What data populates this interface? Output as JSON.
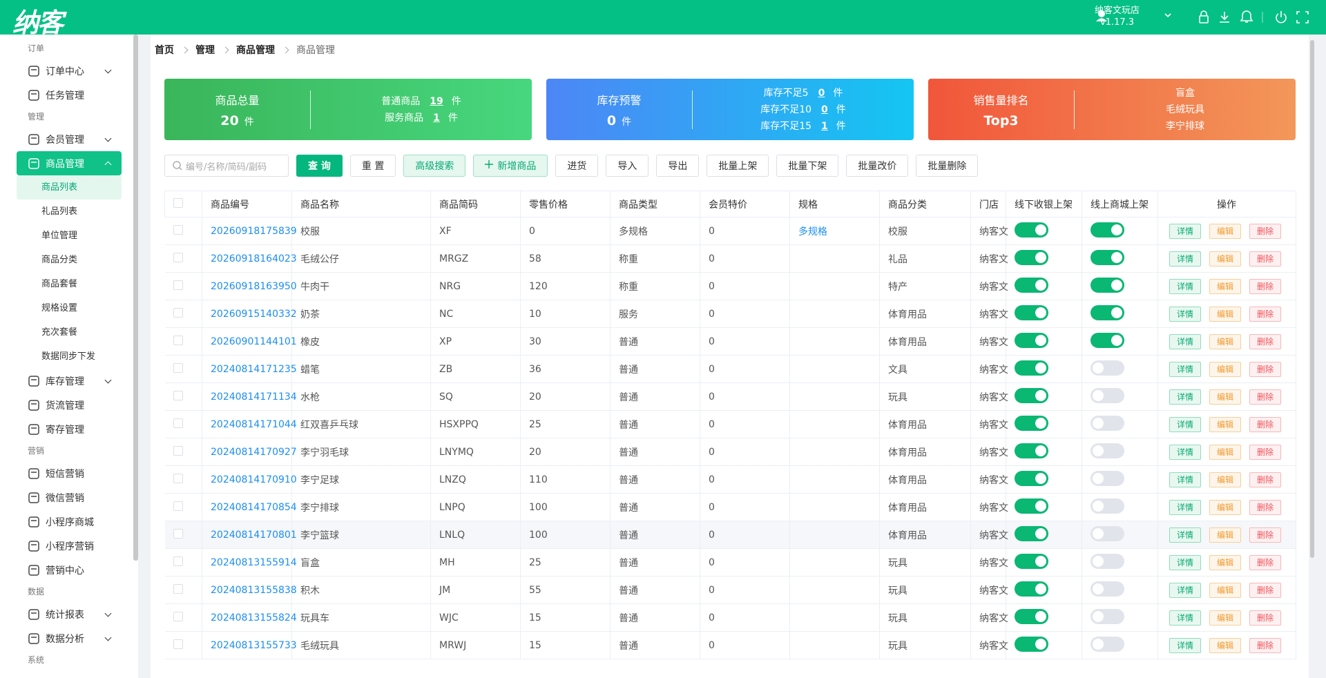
{
  "header": {
    "logo": "纳客",
    "store": "纳客文玩店",
    "version": "v1.17.3"
  },
  "sidebar": [
    {
      "group": "订单",
      "items": [
        {
          "label": "订单中心",
          "arrow": "down"
        },
        {
          "label": "任务管理"
        }
      ]
    },
    {
      "group": "管理",
      "items": [
        {
          "label": "会员管理",
          "arrow": "down"
        },
        {
          "label": "商品管理",
          "arrow": "up",
          "active": true,
          "children": [
            "商品列表",
            "礼品列表",
            "单位管理",
            "商品分类",
            "商品套餐",
            "规格设置",
            "充次套餐",
            "数据同步下发"
          ],
          "active_child": 0
        },
        {
          "label": "库存管理",
          "arrow": "down"
        },
        {
          "label": "货流管理"
        },
        {
          "label": "寄存管理"
        }
      ]
    },
    {
      "group": "营销",
      "items": [
        {
          "label": "短信营销"
        },
        {
          "label": "微信营销"
        },
        {
          "label": "小程序商城"
        },
        {
          "label": "小程序营销"
        },
        {
          "label": "营销中心"
        }
      ]
    },
    {
      "group": "数据",
      "items": [
        {
          "label": "统计报表",
          "arrow": "down"
        },
        {
          "label": "数据分析",
          "arrow": "down"
        }
      ]
    },
    {
      "group": "系统",
      "items": []
    }
  ],
  "breadcrumb": [
    "首页",
    "管理",
    "商品管理",
    "商品管理"
  ],
  "cards": [
    {
      "title": "商品总量",
      "value": 20,
      "unit": "件",
      "lines": [
        {
          "label": "普通商品",
          "value": 19,
          "unit": "件"
        },
        {
          "label": "服务商品",
          "value": 1,
          "unit": "件"
        }
      ],
      "color": [
        "#3ab55a",
        "#47d77e"
      ]
    },
    {
      "title": "库存预警",
      "value": 0,
      "unit": "件",
      "lines": [
        {
          "label": "库存不足5",
          "value": 0,
          "unit": "件"
        },
        {
          "label": "库存不足10",
          "value": 0,
          "unit": "件"
        },
        {
          "label": "库存不足15",
          "value": 1,
          "unit": "件"
        }
      ],
      "color": [
        "#4d86f6",
        "#14c6f2"
      ]
    },
    {
      "title": "销售量排名",
      "value": "Top3",
      "lines": [
        {
          "label": "盲盒"
        },
        {
          "label": "毛绒玩具"
        },
        {
          "label": "李宁排球"
        }
      ],
      "color": [
        "#f1563a",
        "#f3975a"
      ]
    }
  ],
  "toolbar": {
    "search_placeholder": "编号/名称/简码/副码",
    "buttons": [
      {
        "label": "查 询",
        "style": "primary"
      },
      {
        "label": "重 置",
        "style": "default"
      },
      {
        "label": "高级搜索",
        "style": "light"
      },
      {
        "label": "新增商品",
        "style": "light",
        "plus": true
      },
      {
        "label": "进货",
        "style": "default"
      },
      {
        "label": "导入",
        "style": "default"
      },
      {
        "label": "导出",
        "style": "default"
      },
      {
        "label": "批量上架",
        "style": "default"
      },
      {
        "label": "批量下架",
        "style": "default"
      },
      {
        "label": "批量改价",
        "style": "default"
      },
      {
        "label": "批量删除",
        "style": "default"
      }
    ]
  },
  "table": {
    "columns": [
      "商品编号",
      "商品名称",
      "商品简码",
      "零售价格",
      "商品类型",
      "会员特价",
      "规格",
      "商品分类",
      "门店",
      "线下收银上架",
      "线上商城上架",
      "操作"
    ],
    "actions": [
      "详情",
      "编辑",
      "删除"
    ],
    "highlight_row": 11,
    "rows": [
      [
        "20260918175839",
        "校服",
        "XF",
        0,
        "多规格",
        0,
        "多规格",
        "校服",
        "纳客文",
        true,
        true
      ],
      [
        "20260918164023",
        "毛绒公仔",
        "MRGZ",
        58,
        "称重",
        0,
        null,
        "礼品",
        "纳客文",
        true,
        true
      ],
      [
        "20260918163950",
        "牛肉干",
        "NRG",
        120,
        "称重",
        0,
        null,
        "特产",
        "纳客文",
        true,
        true
      ],
      [
        "20260915140332",
        "奶茶",
        "NC",
        10,
        "服务",
        0,
        null,
        "体育用品",
        "纳客文",
        true,
        true
      ],
      [
        "20260901144101",
        "橡皮",
        "XP",
        30,
        "普通",
        0,
        null,
        "体育用品",
        "纳客文",
        true,
        true
      ],
      [
        "20240814171235",
        "蜡笔",
        "ZB",
        36,
        "普通",
        0,
        null,
        "文具",
        "纳客文",
        true,
        false
      ],
      [
        "20240814171134",
        "水枪",
        "SQ",
        20,
        "普通",
        0,
        null,
        "玩具",
        "纳客文",
        true,
        false
      ],
      [
        "20240814171044",
        "红双喜乒乓球",
        "HSXPPQ",
        25,
        "普通",
        0,
        null,
        "体育用品",
        "纳客文",
        true,
        false
      ],
      [
        "20240814170927",
        "李宁羽毛球",
        "LNYMQ",
        20,
        "普通",
        0,
        null,
        "体育用品",
        "纳客文",
        true,
        false
      ],
      [
        "20240814170910",
        "李宁足球",
        "LNZQ",
        110,
        "普通",
        0,
        null,
        "体育用品",
        "纳客文",
        true,
        false
      ],
      [
        "20240814170854",
        "李宁排球",
        "LNPQ",
        100,
        "普通",
        0,
        null,
        "体育用品",
        "纳客文",
        true,
        false
      ],
      [
        "20240814170801",
        "李宁篮球",
        "LNLQ",
        100,
        "普通",
        0,
        null,
        "体育用品",
        "纳客文",
        true,
        false
      ],
      [
        "20240813155914",
        "盲盒",
        "MH",
        25,
        "普通",
        0,
        null,
        "玩具",
        "纳客文",
        true,
        false
      ],
      [
        "20240813155838",
        "积木",
        "JM",
        55,
        "普通",
        0,
        null,
        "玩具",
        "纳客文",
        true,
        false
      ],
      [
        "20240813155824",
        "玩具车",
        "WJC",
        15,
        "普通",
        0,
        null,
        "玩具",
        "纳客文",
        true,
        false
      ],
      [
        "20240813155733",
        "毛绒玩具",
        "MRWJ",
        15,
        "普通",
        0,
        null,
        "玩具",
        "纳客文",
        true,
        false
      ]
    ]
  }
}
